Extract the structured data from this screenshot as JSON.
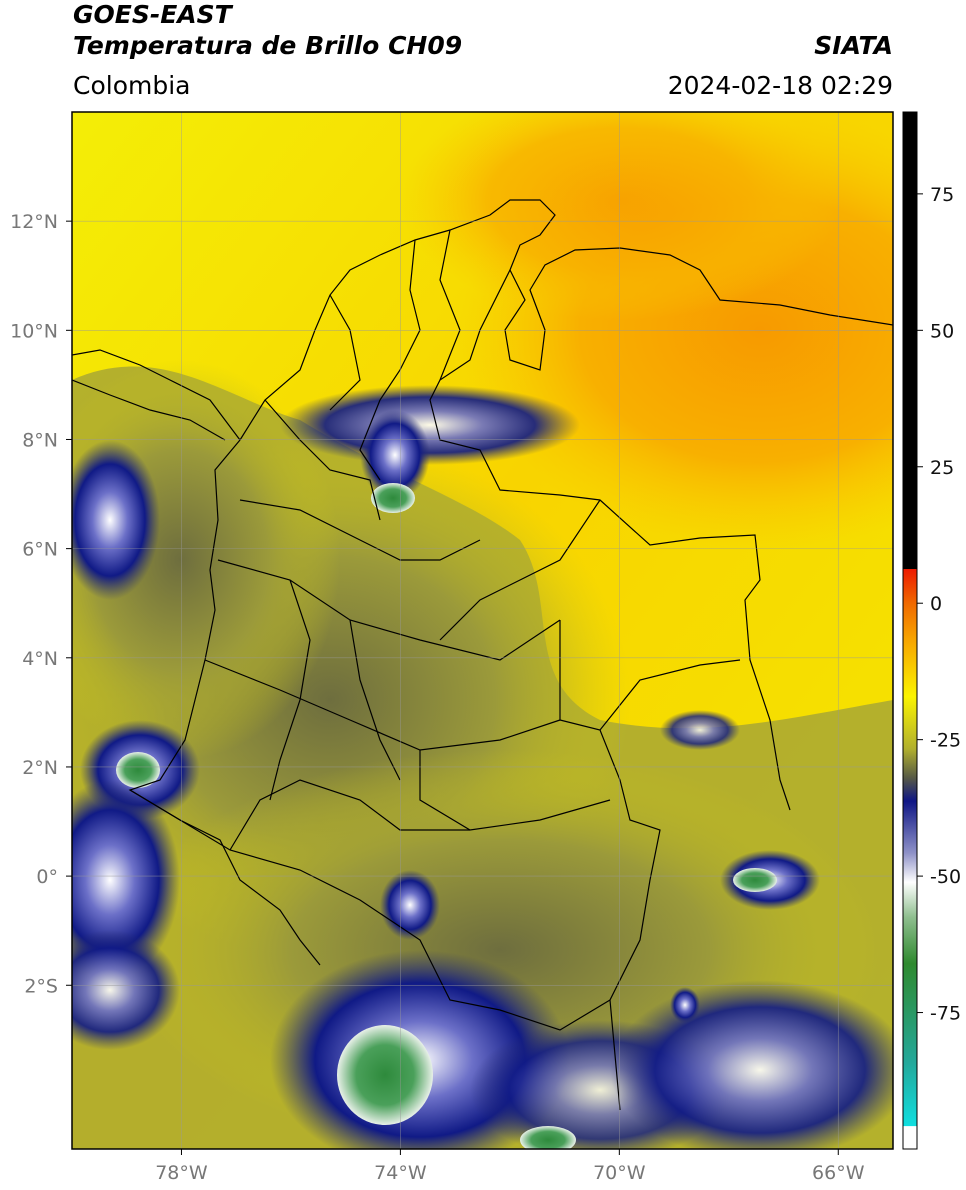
{
  "header": {
    "satellite": "GOES-EAST",
    "product": "Temperatura de Brillo CH09",
    "region": "Colombia",
    "agency": "SIATA",
    "datetime": "2024-02-18 02:29"
  },
  "map": {
    "lon_range": [
      -80.0,
      -65.0
    ],
    "lat_range": [
      -5.0,
      14.0
    ],
    "lat_ticks": [
      {
        "value": 12,
        "label": "12°N"
      },
      {
        "value": 10,
        "label": "10°N"
      },
      {
        "value": 8,
        "label": "8°N"
      },
      {
        "value": 6,
        "label": "6°N"
      },
      {
        "value": 4,
        "label": "4°N"
      },
      {
        "value": 2,
        "label": "2°N"
      },
      {
        "value": 0,
        "label": "0°"
      },
      {
        "value": -2,
        "label": "2°S"
      }
    ],
    "lon_ticks": [
      {
        "value": -78,
        "label": "78°W"
      },
      {
        "value": -74,
        "label": "74°W"
      },
      {
        "value": -70,
        "label": "70°W"
      },
      {
        "value": -66,
        "label": "66°W"
      }
    ],
    "grid": true
  },
  "colorbar": {
    "range": [
      -100,
      90
    ],
    "ticks": [
      {
        "value": 75,
        "label": "75"
      },
      {
        "value": 50,
        "label": "50"
      },
      {
        "value": 25,
        "label": "25"
      },
      {
        "value": 0,
        "label": "0"
      },
      {
        "value": -25,
        "label": "-25"
      },
      {
        "value": -50,
        "label": "-50"
      },
      {
        "value": -75,
        "label": "-75"
      }
    ],
    "colors": {
      "black": "#000000",
      "red": "#ee1a00",
      "orange": "#f7a300",
      "yellow": "#fbf400",
      "olive": "#b1b02e",
      "gray": "#575a46",
      "navy": "#0f1685",
      "white": "#ffffff",
      "green": "#2f8a2f",
      "cyan": "#10dedf"
    }
  }
}
